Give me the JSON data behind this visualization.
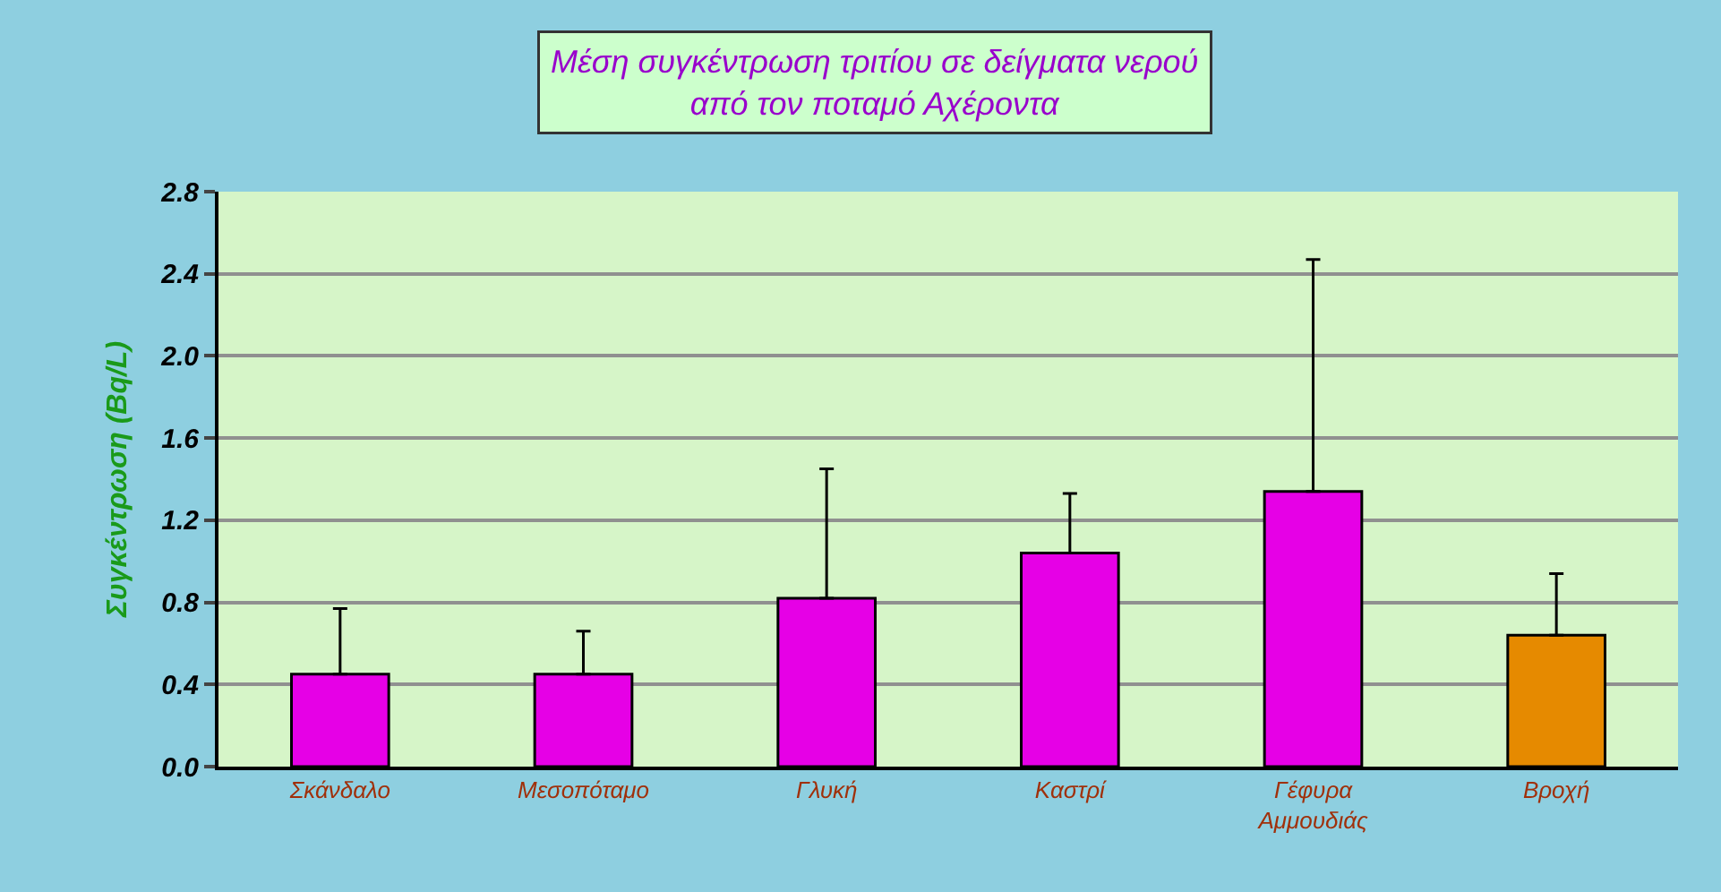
{
  "chart_data": {
    "type": "bar",
    "title": "Μέση συγκέντρωση τριτίου σε δείγματα νερού\nαπό τον ποταμό Αχέροντα",
    "ylabel": "Συγκέντρωση (Bq/L)",
    "categories": [
      "Σκάνδαλο",
      "Μεσοπόταμο",
      "Γλυκή",
      "Καστρί",
      "Γέφυρα Αμμουδιάς",
      "Βροχή"
    ],
    "values": [
      0.45,
      0.45,
      0.82,
      1.04,
      1.34,
      0.64
    ],
    "colors": [
      "#e600e6",
      "#e600e6",
      "#e600e6",
      "#e600e6",
      "#e600e6",
      "#e68a00"
    ],
    "errors": [
      [
        0.45,
        0.77
      ],
      [
        0.45,
        0.66
      ],
      [
        0.82,
        1.45
      ],
      [
        1.04,
        1.33
      ],
      [
        1.34,
        2.47
      ],
      [
        0.64,
        0.94
      ]
    ],
    "ylim": [
      0,
      2.8
    ],
    "yticks": [
      {
        "value": 0,
        "label": "0.0"
      },
      {
        "value": 0.4,
        "label": "0.4"
      },
      {
        "value": 0.8,
        "label": "0.8"
      },
      {
        "value": 1.2,
        "label": "1.2"
      },
      {
        "value": 1.6,
        "label": "1.6"
      },
      {
        "value": 2.0,
        "label": "2.0"
      },
      {
        "value": 2.4,
        "label": "2.4"
      },
      {
        "value": 2.8,
        "label": "2.8"
      }
    ],
    "grid": "y"
  }
}
